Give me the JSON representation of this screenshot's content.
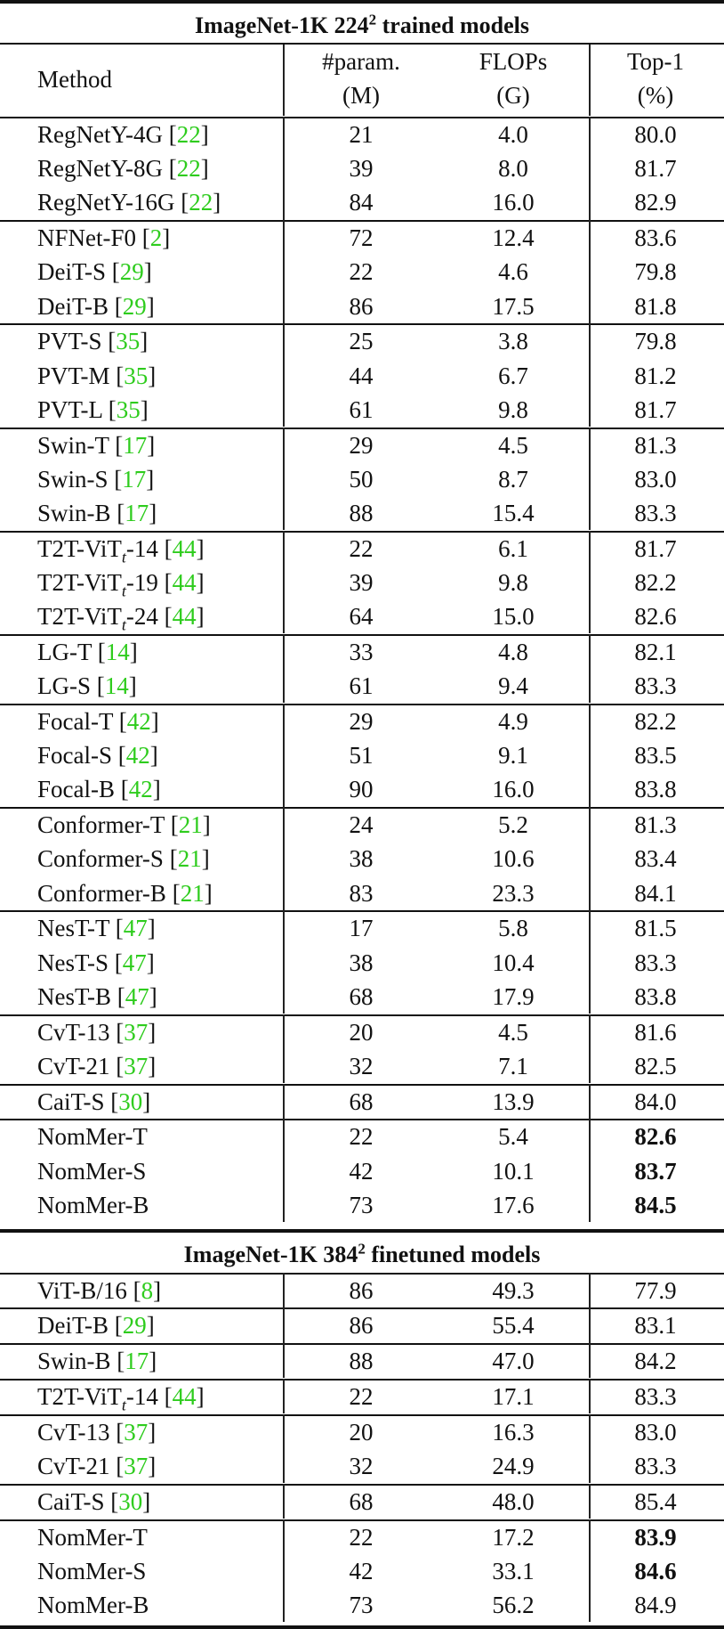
{
  "header": {
    "section1_title": "ImageNet-1K 224",
    "section1_sup": "2",
    "section1_suffix": " trained models",
    "section2_title": "ImageNet-1K 384",
    "section2_sup": "2",
    "section2_suffix": " finetuned models",
    "col_method": "Method",
    "col_param_line1": "#param.",
    "col_param_line2": "(M)",
    "col_flops_line1": "FLOPs",
    "col_flops_line2": "(G)",
    "col_top1_line1": "Top-1",
    "col_top1_line2": "(%)"
  },
  "section1": {
    "groups": [
      [
        {
          "name": "RegNetY-4G",
          "ref": "22",
          "param": "21",
          "flops": "4.0",
          "top1": "80.0",
          "bold": false
        },
        {
          "name": "RegNetY-8G",
          "ref": "22",
          "param": "39",
          "flops": "8.0",
          "top1": "81.7",
          "bold": false
        },
        {
          "name": "RegNetY-16G",
          "ref": "22",
          "param": "84",
          "flops": "16.0",
          "top1": "82.9",
          "bold": false
        }
      ],
      [
        {
          "name": "NFNet-F0",
          "ref": "2",
          "param": "72",
          "flops": "12.4",
          "top1": "83.6",
          "bold": false
        },
        {
          "name": "DeiT-S",
          "ref": "29",
          "param": "22",
          "flops": "4.6",
          "top1": "79.8",
          "bold": false
        },
        {
          "name": "DeiT-B",
          "ref": "29",
          "param": "86",
          "flops": "17.5",
          "top1": "81.8",
          "bold": false
        }
      ],
      [
        {
          "name": "PVT-S",
          "ref": "35",
          "param": "25",
          "flops": "3.8",
          "top1": "79.8",
          "bold": false
        },
        {
          "name": "PVT-M",
          "ref": "35",
          "param": "44",
          "flops": "6.7",
          "top1": "81.2",
          "bold": false
        },
        {
          "name": "PVT-L",
          "ref": "35",
          "param": "61",
          "flops": "9.8",
          "top1": "81.7",
          "bold": false
        }
      ],
      [
        {
          "name": "Swin-T",
          "ref": "17",
          "param": "29",
          "flops": "4.5",
          "top1": "81.3",
          "bold": false
        },
        {
          "name": "Swin-S",
          "ref": "17",
          "param": "50",
          "flops": "8.7",
          "top1": "83.0",
          "bold": false
        },
        {
          "name": "Swin-B",
          "ref": "17",
          "param": "88",
          "flops": "15.4",
          "top1": "83.3",
          "bold": false
        }
      ],
      [
        {
          "name": "T2T-ViT",
          "sub": "t",
          "suffix": "-14",
          "ref": "44",
          "param": "22",
          "flops": "6.1",
          "top1": "81.7",
          "bold": false
        },
        {
          "name": "T2T-ViT",
          "sub": "t",
          "suffix": "-19",
          "ref": "44",
          "param": "39",
          "flops": "9.8",
          "top1": "82.2",
          "bold": false
        },
        {
          "name": "T2T-ViT",
          "sub": "t",
          "suffix": "-24",
          "ref": "44",
          "param": "64",
          "flops": "15.0",
          "top1": "82.6",
          "bold": false
        }
      ],
      [
        {
          "name": "LG-T",
          "ref": "14",
          "param": "33",
          "flops": "4.8",
          "top1": "82.1",
          "bold": false
        },
        {
          "name": "LG-S",
          "ref": "14",
          "param": "61",
          "flops": "9.4",
          "top1": "83.3",
          "bold": false
        }
      ],
      [
        {
          "name": "Focal-T",
          "ref": "42",
          "param": "29",
          "flops": "4.9",
          "top1": "82.2",
          "bold": false
        },
        {
          "name": "Focal-S",
          "ref": "42",
          "param": "51",
          "flops": "9.1",
          "top1": "83.5",
          "bold": false
        },
        {
          "name": "Focal-B",
          "ref": "42",
          "param": "90",
          "flops": "16.0",
          "top1": "83.8",
          "bold": false
        }
      ],
      [
        {
          "name": "Conformer-T",
          "ref": "21",
          "param": "24",
          "flops": "5.2",
          "top1": "81.3",
          "bold": false
        },
        {
          "name": "Conformer-S",
          "ref": "21",
          "param": "38",
          "flops": "10.6",
          "top1": "83.4",
          "bold": false
        },
        {
          "name": "Conformer-B",
          "ref": "21",
          "param": "83",
          "flops": "23.3",
          "top1": "84.1",
          "bold": false
        }
      ],
      [
        {
          "name": "NesT-T",
          "ref": "47",
          "param": "17",
          "flops": "5.8",
          "top1": "81.5",
          "bold": false
        },
        {
          "name": "NesT-S",
          "ref": "47",
          "param": "38",
          "flops": "10.4",
          "top1": "83.3",
          "bold": false
        },
        {
          "name": "NesT-B",
          "ref": "47",
          "param": "68",
          "flops": "17.9",
          "top1": "83.8",
          "bold": false
        }
      ],
      [
        {
          "name": "CvT-13",
          "ref": "37",
          "param": "20",
          "flops": "4.5",
          "top1": "81.6",
          "bold": false
        },
        {
          "name": "CvT-21",
          "ref": "37",
          "param": "32",
          "flops": "7.1",
          "top1": "82.5",
          "bold": false
        }
      ],
      [
        {
          "name": "CaiT-S",
          "ref": "30",
          "param": "68",
          "flops": "13.9",
          "top1": "84.0",
          "bold": false
        }
      ],
      [
        {
          "name": "NomMer-T",
          "ref": "",
          "param": "22",
          "flops": "5.4",
          "top1": "82.6",
          "bold": true
        },
        {
          "name": "NomMer-S",
          "ref": "",
          "param": "42",
          "flops": "10.1",
          "top1": "83.7",
          "bold": true
        },
        {
          "name": "NomMer-B",
          "ref": "",
          "param": "73",
          "flops": "17.6",
          "top1": "84.5",
          "bold": true
        }
      ]
    ]
  },
  "section2": {
    "groups": [
      [
        {
          "name": "ViT-B/16",
          "ref": "8",
          "param": "86",
          "flops": "49.3",
          "top1": "77.9",
          "bold": false
        }
      ],
      [
        {
          "name": "DeiT-B",
          "ref": "29",
          "param": "86",
          "flops": "55.4",
          "top1": "83.1",
          "bold": false
        }
      ],
      [
        {
          "name": "Swin-B",
          "ref": "17",
          "param": "88",
          "flops": "47.0",
          "top1": "84.2",
          "bold": false
        }
      ],
      [
        {
          "name": "T2T-ViT",
          "sub": "t",
          "suffix": "-14",
          "ref": "44",
          "param": "22",
          "flops": "17.1",
          "top1": "83.3",
          "bold": false
        }
      ],
      [
        {
          "name": "CvT-13",
          "ref": "37",
          "param": "20",
          "flops": "16.3",
          "top1": "83.0",
          "bold": false
        },
        {
          "name": "CvT-21",
          "ref": "37",
          "param": "32",
          "flops": "24.9",
          "top1": "83.3",
          "bold": false
        }
      ],
      [
        {
          "name": "CaiT-S",
          "ref": "30",
          "param": "68",
          "flops": "48.0",
          "top1": "85.4",
          "bold": false
        }
      ],
      [
        {
          "name": "NomMer-T",
          "ref": "",
          "param": "22",
          "flops": "17.2",
          "top1": "83.9",
          "bold": true
        },
        {
          "name": "NomMer-S",
          "ref": "",
          "param": "42",
          "flops": "33.1",
          "top1": "84.6",
          "bold": true
        },
        {
          "name": "NomMer-B",
          "ref": "",
          "param": "73",
          "flops": "56.2",
          "top1": "84.9",
          "bold": false
        }
      ]
    ]
  }
}
